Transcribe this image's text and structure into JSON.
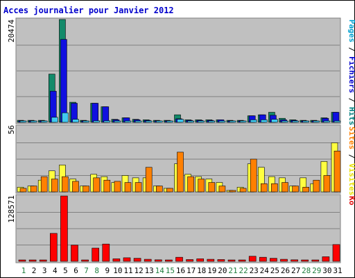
{
  "chart_data": {
    "type": "bar",
    "title": "Acces journalier pour Janvier 2012",
    "categories": [
      "1",
      "2",
      "3",
      "4",
      "5",
      "6",
      "7",
      "8",
      "9",
      "10",
      "11",
      "12",
      "13",
      "14",
      "15",
      "16",
      "17",
      "18",
      "19",
      "20",
      "21",
      "22",
      "23",
      "24",
      "25",
      "26",
      "27",
      "28",
      "29",
      "30",
      "31"
    ],
    "weekend_days": [
      "1",
      "7",
      "8",
      "14",
      "15",
      "21",
      "22",
      "28",
      "29"
    ],
    "panels": [
      {
        "id": "top",
        "ymax_label": "20474",
        "ymax": 20474,
        "right_label_parts": [
          {
            "text": "Pages",
            "color": "#00a0d0"
          },
          {
            "text": " / ",
            "color": "#000000"
          },
          {
            "text": "Fichiers",
            "color": "#0000cc"
          },
          {
            "text": " / ",
            "color": "#000000"
          },
          {
            "text": "Hits",
            "color": "#008080"
          }
        ],
        "series": [
          {
            "name": "Hits",
            "color": "#138a6a",
            "values": [
              400,
              400,
              400,
              9600,
              20474,
              4000,
              400,
              3800,
              3100,
              600,
              900,
              600,
              500,
              400,
              400,
              1500,
              500,
              500,
              500,
              500,
              400,
              400,
              1300,
              1500,
              2000,
              800,
              500,
              400,
              400,
              900,
              2000
            ]
          },
          {
            "name": "Fichiers",
            "color": "#1010e0",
            "values": [
              300,
              300,
              300,
              6200,
              16500,
              3800,
              300,
              3800,
              3100,
              500,
              900,
              500,
              400,
              300,
              300,
              700,
              400,
              400,
              400,
              500,
              300,
              300,
              1300,
              1500,
              1400,
              500,
              400,
              300,
              300,
              800,
              2000
            ]
          },
          {
            "name": "Pages",
            "color": "#40c8f0",
            "values": [
              100,
              100,
              100,
              1000,
              1900,
              600,
              100,
              300,
              300,
              100,
              200,
              100,
              100,
              100,
              100,
              600,
              100,
              100,
              100,
              100,
              100,
              100,
              500,
              500,
              600,
              100,
              100,
              100,
              100,
              200,
              200
            ]
          }
        ]
      },
      {
        "id": "mid",
        "ymax_label": "56",
        "ymax": 56,
        "right_label_parts": [
          {
            "text": "Sites",
            "color": "#ff8000"
          },
          {
            "text": " / ",
            "color": "#000000"
          },
          {
            "text": "Visites",
            "color": "#e8e000"
          }
        ],
        "series": [
          {
            "name": "Visites",
            "color": "#ffff40",
            "values": [
              4,
              5,
              10,
              18,
              23,
              11,
              5,
              15,
              13,
              8,
              14,
              12,
              12,
              5,
              3,
              24,
              15,
              13,
              11,
              8,
              1,
              4,
              24,
              21,
              13,
              12,
              5,
              12,
              7,
              26,
              42
            ]
          },
          {
            "name": "Sites",
            "color": "#ff8000",
            "values": [
              3,
              5,
              13,
              11,
              13,
              9,
              5,
              12,
              10,
              9,
              8,
              8,
              21,
              5,
              3,
              34,
              13,
              11,
              8,
              5,
              1,
              3,
              28,
              7,
              7,
              8,
              5,
              4,
              10,
              14,
              35
            ]
          }
        ]
      },
      {
        "id": "bot",
        "ymax_label": "128571",
        "ymax": 128571,
        "right_label_parts": [
          {
            "text": "Ko",
            "color": "#e00000"
          }
        ],
        "series": [
          {
            "name": "Ko",
            "color": "#ff0000",
            "values": [
              1500,
              1500,
              1500,
              55000,
              128571,
              32000,
              1500,
              26000,
              34000,
              5000,
              7000,
              6000,
              4000,
              3000,
              2500,
              8000,
              3500,
              5000,
              4000,
              3500,
              2000,
              2000,
              10000,
              8000,
              6000,
              4000,
              3000,
              2000,
              2000,
              9000,
              33000
            ]
          }
        ]
      }
    ]
  }
}
